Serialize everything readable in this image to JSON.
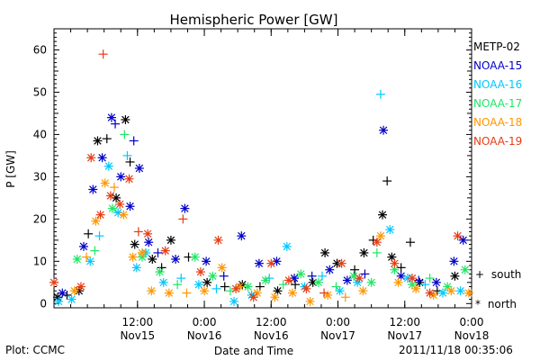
{
  "page": {
    "title": "Hemispheric Power [GW]",
    "footer_left": "Plot: CCMC",
    "footer_right": "2011/11/18 00:35:06"
  },
  "chart_data": {
    "type": "scatter",
    "title": "Hemispheric Power [GW]",
    "xlabel": "Date and Time",
    "ylabel": "P [GW]",
    "xlim": [
      "2011-11-14 21:00",
      "2011-11-18 00:00"
    ],
    "ylim": [
      -1,
      65
    ],
    "yticks": [
      0,
      10,
      20,
      30,
      40,
      50,
      60
    ],
    "xticks": [
      {
        "t": "2011-11-15 12:00",
        "line1": "12:00",
        "line2": "Nov15"
      },
      {
        "t": "2011-11-16 00:00",
        "line1": "0:00",
        "line2": "Nov16"
      },
      {
        "t": "2011-11-16 12:00",
        "line1": "12:00",
        "line2": "Nov16"
      },
      {
        "t": "2011-11-17 00:00",
        "line1": "0:00",
        "line2": "Nov17"
      },
      {
        "t": "2011-11-17 12:00",
        "line1": "12:00",
        "line2": "Nov17"
      },
      {
        "t": "2011-11-18 00:00",
        "line1": "0:00",
        "line2": "Nov18"
      }
    ],
    "legend_position": "right",
    "marker_legend": [
      {
        "marker": "+",
        "label": "south"
      },
      {
        "marker": "*",
        "label": "north"
      }
    ],
    "series": [
      {
        "name": "METP-02",
        "color": "#000000",
        "points": [
          [
            "2011-11-14 21:40",
            1.5,
            "*"
          ],
          [
            "2011-11-14 23:20",
            2.0,
            "+"
          ],
          [
            "2011-11-15 01:30",
            3.0,
            "*"
          ],
          [
            "2011-11-15 03:10",
            16.5,
            "+"
          ],
          [
            "2011-11-15 04:50",
            38.5,
            "*"
          ],
          [
            "2011-11-15 06:30",
            39.0,
            "+"
          ],
          [
            "2011-11-15 08:10",
            25.0,
            "*"
          ],
          [
            "2011-11-15 09:50",
            43.5,
            "*"
          ],
          [
            "2011-11-15 10:40",
            33.5,
            "+"
          ],
          [
            "2011-11-15 11:30",
            14.0,
            "*"
          ],
          [
            "2011-11-15 14:40",
            10.5,
            "*"
          ],
          [
            "2011-11-15 16:20",
            8.5,
            "+"
          ],
          [
            "2011-11-15 18:00",
            15.0,
            "*"
          ],
          [
            "2011-11-15 21:10",
            11.0,
            "+"
          ],
          [
            "2011-11-16 00:30",
            5.0,
            "*"
          ],
          [
            "2011-11-16 03:40",
            4.0,
            "+"
          ],
          [
            "2011-11-16 06:50",
            4.5,
            "*"
          ],
          [
            "2011-11-16 10:00",
            4.0,
            "+"
          ],
          [
            "2011-11-16 13:10",
            3.0,
            "*"
          ],
          [
            "2011-11-16 16:20",
            4.5,
            "+"
          ],
          [
            "2011-11-16 19:30",
            5.0,
            "*"
          ],
          [
            "2011-11-16 21:40",
            12.0,
            "*"
          ],
          [
            "2011-11-16 23:50",
            9.5,
            "*"
          ],
          [
            "2011-11-17 03:00",
            8.0,
            "+"
          ],
          [
            "2011-11-17 04:40",
            12.0,
            "*"
          ],
          [
            "2011-11-17 06:20",
            15.0,
            "+"
          ],
          [
            "2011-11-17 08:00",
            21.0,
            "*"
          ],
          [
            "2011-11-17 08:50",
            29.0,
            "+"
          ],
          [
            "2011-11-17 09:40",
            11.0,
            "*"
          ],
          [
            "2011-11-17 11:20",
            8.5,
            "+"
          ],
          [
            "2011-11-17 13:00",
            14.5,
            "+"
          ],
          [
            "2011-11-17 14:40",
            5.0,
            "*"
          ],
          [
            "2011-11-17 17:50",
            3.0,
            "+"
          ],
          [
            "2011-11-17 21:00",
            6.5,
            "*"
          ]
        ]
      },
      {
        "name": "NOAA-15",
        "color": "#0000c8",
        "points": [
          [
            "2011-11-14 22:30",
            2.5,
            "*"
          ],
          [
            "2011-11-15 02:20",
            13.5,
            "*"
          ],
          [
            "2011-11-15 04:00",
            27.0,
            "*"
          ],
          [
            "2011-11-15 05:40",
            34.5,
            "*"
          ],
          [
            "2011-11-15 07:20",
            44.0,
            "*"
          ],
          [
            "2011-11-15 08:00",
            42.5,
            "+"
          ],
          [
            "2011-11-15 09:00",
            30.0,
            "*"
          ],
          [
            "2011-11-15 10:40",
            23.0,
            "*"
          ],
          [
            "2011-11-15 11:20",
            38.5,
            "+"
          ],
          [
            "2011-11-15 12:20",
            32.0,
            "*"
          ],
          [
            "2011-11-15 14:00",
            14.5,
            "*"
          ],
          [
            "2011-11-15 15:40",
            12.0,
            "+"
          ],
          [
            "2011-11-15 18:50",
            10.5,
            "*"
          ],
          [
            "2011-11-15 20:30",
            22.5,
            "*"
          ],
          [
            "2011-11-16 00:20",
            10.0,
            "*"
          ],
          [
            "2011-11-16 03:30",
            6.5,
            "+"
          ],
          [
            "2011-11-16 06:40",
            16.0,
            "*"
          ],
          [
            "2011-11-16 09:50",
            9.5,
            "*"
          ],
          [
            "2011-11-16 13:00",
            10.0,
            "*"
          ],
          [
            "2011-11-16 16:10",
            6.0,
            "*"
          ],
          [
            "2011-11-16 19:20",
            6.5,
            "+"
          ],
          [
            "2011-11-16 22:30",
            8.0,
            "*"
          ],
          [
            "2011-11-17 01:40",
            5.5,
            "*"
          ],
          [
            "2011-11-17 04:50",
            7.0,
            "+"
          ],
          [
            "2011-11-17 08:10",
            41.0,
            "*"
          ],
          [
            "2011-11-17 11:20",
            6.5,
            "*"
          ],
          [
            "2011-11-17 14:30",
            5.5,
            "+"
          ],
          [
            "2011-11-17 17:40",
            5.0,
            "*"
          ],
          [
            "2011-11-17 20:50",
            10.0,
            "*"
          ],
          [
            "2011-11-17 22:30",
            15.0,
            "*"
          ]
        ]
      },
      {
        "name": "NOAA-16",
        "color": "#00c8ff",
        "points": [
          [
            "2011-11-14 21:50",
            0.5,
            "*"
          ],
          [
            "2011-11-15 00:10",
            1.0,
            "*"
          ],
          [
            "2011-11-15 03:30",
            10.0,
            "*"
          ],
          [
            "2011-11-15 05:10",
            16.0,
            "+"
          ],
          [
            "2011-11-15 06:50",
            32.5,
            "*"
          ],
          [
            "2011-11-15 08:30",
            21.5,
            "*"
          ],
          [
            "2011-11-15 10:10",
            35.0,
            "+"
          ],
          [
            "2011-11-15 11:50",
            8.5,
            "*"
          ],
          [
            "2011-11-15 13:30",
            12.0,
            "*"
          ],
          [
            "2011-11-15 16:40",
            5.0,
            "*"
          ],
          [
            "2011-11-15 19:50",
            6.0,
            "+"
          ],
          [
            "2011-11-15 23:00",
            4.5,
            "*"
          ],
          [
            "2011-11-16 02:10",
            3.5,
            "+"
          ],
          [
            "2011-11-16 05:20",
            0.5,
            "*"
          ],
          [
            "2011-11-16 08:30",
            2.0,
            "*"
          ],
          [
            "2011-11-16 11:40",
            6.0,
            "+"
          ],
          [
            "2011-11-16 14:50",
            13.5,
            "*"
          ],
          [
            "2011-11-16 18:00",
            4.0,
            "*"
          ],
          [
            "2011-11-16 21:10",
            6.5,
            "+"
          ],
          [
            "2011-11-17 00:20",
            3.0,
            "*"
          ],
          [
            "2011-11-17 03:30",
            5.0,
            "*"
          ],
          [
            "2011-11-17 07:40",
            49.5,
            "+"
          ],
          [
            "2011-11-17 09:20",
            17.5,
            "*"
          ],
          [
            "2011-11-17 12:30",
            6.0,
            "*"
          ],
          [
            "2011-11-17 15:40",
            4.5,
            "+"
          ],
          [
            "2011-11-17 18:50",
            2.5,
            "*"
          ],
          [
            "2011-11-17 22:00",
            3.0,
            "*"
          ]
        ]
      },
      {
        "name": "NOAA-17",
        "color": "#1ee664",
        "points": [
          [
            "2011-11-15 01:10",
            10.5,
            "*"
          ],
          [
            "2011-11-15 04:20",
            12.5,
            "+"
          ],
          [
            "2011-11-15 07:30",
            22.5,
            "*"
          ],
          [
            "2011-11-15 09:40",
            40.0,
            "+"
          ],
          [
            "2011-11-15 12:50",
            11.0,
            "*"
          ],
          [
            "2011-11-15 16:00",
            7.5,
            "*"
          ],
          [
            "2011-11-15 19:10",
            4.5,
            "+"
          ],
          [
            "2011-11-15 22:20",
            11.0,
            "*"
          ],
          [
            "2011-11-16 01:30",
            6.5,
            "*"
          ],
          [
            "2011-11-16 04:40",
            3.0,
            "+"
          ],
          [
            "2011-11-16 07:50",
            4.0,
            "*"
          ],
          [
            "2011-11-16 11:00",
            5.5,
            "*"
          ],
          [
            "2011-11-16 14:10",
            4.5,
            "+"
          ],
          [
            "2011-11-16 17:20",
            7.0,
            "*"
          ],
          [
            "2011-11-16 20:30",
            5.0,
            "*"
          ],
          [
            "2011-11-16 23:40",
            4.0,
            "+"
          ],
          [
            "2011-11-17 02:50",
            6.5,
            "*"
          ],
          [
            "2011-11-17 06:00",
            5.0,
            "*"
          ],
          [
            "2011-11-17 07:00",
            12.0,
            "+"
          ],
          [
            "2011-11-17 10:10",
            8.0,
            "*"
          ],
          [
            "2011-11-17 13:20",
            4.5,
            "*"
          ],
          [
            "2011-11-17 16:30",
            6.0,
            "+"
          ],
          [
            "2011-11-17 19:40",
            4.0,
            "*"
          ],
          [
            "2011-11-17 22:50",
            8.0,
            "*"
          ]
        ]
      },
      {
        "name": "NOAA-18",
        "color": "#ff9600",
        "points": [
          [
            "2011-11-15 00:40",
            3.0,
            "*"
          ],
          [
            "2011-11-15 02:50",
            11.0,
            "+"
          ],
          [
            "2011-11-15 04:30",
            19.5,
            "*"
          ],
          [
            "2011-11-15 06:10",
            28.5,
            "*"
          ],
          [
            "2011-11-15 07:50",
            27.5,
            "+"
          ],
          [
            "2011-11-15 09:30",
            21.0,
            "*"
          ],
          [
            "2011-11-15 11:10",
            11.0,
            "*"
          ],
          [
            "2011-11-15 12:50",
            12.0,
            "*"
          ],
          [
            "2011-11-15 14:30",
            3.0,
            "*"
          ],
          [
            "2011-11-15 17:40",
            2.5,
            "*"
          ],
          [
            "2011-11-15 20:50",
            2.5,
            "+"
          ],
          [
            "2011-11-16 00:00",
            3.0,
            "*"
          ],
          [
            "2011-11-16 03:10",
            8.5,
            "*"
          ],
          [
            "2011-11-16 06:20",
            4.0,
            "*"
          ],
          [
            "2011-11-16 09:30",
            2.5,
            "*"
          ],
          [
            "2011-11-16 12:40",
            1.5,
            "*"
          ],
          [
            "2011-11-16 15:50",
            2.5,
            "*"
          ],
          [
            "2011-11-16 19:00",
            0.5,
            "*"
          ],
          [
            "2011-11-16 22:10",
            2.0,
            "*"
          ],
          [
            "2011-11-17 01:20",
            1.5,
            "+"
          ],
          [
            "2011-11-17 04:30",
            3.0,
            "*"
          ],
          [
            "2011-11-17 07:40",
            16.0,
            "*"
          ],
          [
            "2011-11-17 10:50",
            5.0,
            "*"
          ],
          [
            "2011-11-17 14:00",
            3.5,
            "*"
          ],
          [
            "2011-11-17 17:10",
            2.0,
            "*"
          ],
          [
            "2011-11-17 20:20",
            3.0,
            "*"
          ],
          [
            "2011-11-17 23:30",
            2.5,
            "*"
          ]
        ]
      },
      {
        "name": "NOAA-19",
        "color": "#e63c14",
        "points": [
          [
            "2011-11-14 21:00",
            5.0,
            "*"
          ],
          [
            "2011-11-15 01:50",
            4.0,
            "*"
          ],
          [
            "2011-11-15 03:40",
            34.5,
            "*"
          ],
          [
            "2011-11-15 05:20",
            21.0,
            "*"
          ],
          [
            "2011-11-15 05:50",
            59.0,
            "+"
          ],
          [
            "2011-11-15 07:10",
            25.5,
            "*"
          ],
          [
            "2011-11-15 08:50",
            23.5,
            "*"
          ],
          [
            "2011-11-15 10:30",
            29.5,
            "*"
          ],
          [
            "2011-11-15 12:10",
            17.0,
            "+"
          ],
          [
            "2011-11-15 13:50",
            16.5,
            "*"
          ],
          [
            "2011-11-15 17:00",
            12.5,
            "*"
          ],
          [
            "2011-11-15 20:10",
            20.0,
            "+"
          ],
          [
            "2011-11-15 23:20",
            7.5,
            "*"
          ],
          [
            "2011-11-16 02:30",
            15.0,
            "*"
          ],
          [
            "2011-11-16 05:40",
            3.5,
            "*"
          ],
          [
            "2011-11-16 08:50",
            1.5,
            "*"
          ],
          [
            "2011-11-16 12:00",
            9.5,
            "*"
          ],
          [
            "2011-11-16 15:10",
            5.5,
            "*"
          ],
          [
            "2011-11-16 18:20",
            3.5,
            "*"
          ],
          [
            "2011-11-16 21:30",
            2.5,
            "+"
          ],
          [
            "2011-11-17 00:40",
            9.5,
            "*"
          ],
          [
            "2011-11-17 03:50",
            6.0,
            "*"
          ],
          [
            "2011-11-17 07:00",
            14.5,
            "*"
          ],
          [
            "2011-11-17 10:10",
            9.5,
            "*"
          ],
          [
            "2011-11-17 13:20",
            6.0,
            "*"
          ],
          [
            "2011-11-17 16:30",
            2.5,
            "*"
          ],
          [
            "2011-11-17 21:30",
            16.0,
            "*"
          ]
        ]
      }
    ]
  }
}
